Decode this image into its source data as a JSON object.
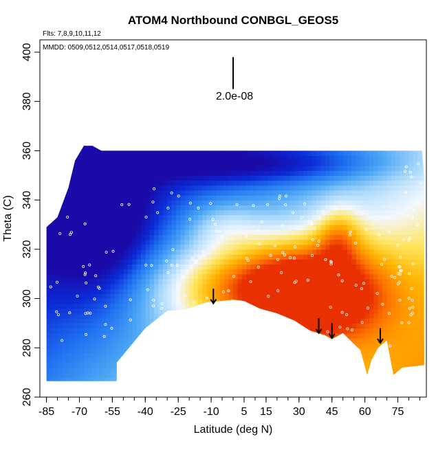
{
  "chart_data": {
    "type": "heatmap",
    "title": "ATOM4 Northbound CONBGL_GEOS5",
    "flights_note": "Flts: 7,8,9,10,11,12",
    "dates_note": "MMDD: 0509,0512,0514,0517,0518,0519",
    "scale_label": "2.0e-08",
    "xlabel": "Latitude (deg N)",
    "ylabel": "Theta (C)",
    "xlim": [
      -88,
      88
    ],
    "ylim": [
      260,
      405
    ],
    "x_ticks": [
      -85,
      -70,
      -55,
      -40,
      -25,
      -10,
      5,
      15,
      30,
      45,
      60,
      75
    ],
    "x_tick_labels": [
      "-85",
      "-70",
      "-55",
      "-40",
      "-25",
      "-10",
      "5",
      "15",
      "30",
      "45",
      "60",
      "75"
    ],
    "y_ticks": [
      260,
      280,
      300,
      320,
      340,
      360,
      380,
      400
    ],
    "y_tick_labels": [
      "260",
      "280",
      "300",
      "320",
      "340",
      "360",
      "380",
      "400"
    ],
    "minor_x_step": 5,
    "scale_bar": {
      "x": 0,
      "y_top": 398,
      "y_bottom": 385
    },
    "colormap": [
      "#1a0aa8",
      "#0a2ad6",
      "#1f6ff0",
      "#4aa5f5",
      "#a8d8fb",
      "#f2f8ff",
      "#ffe45a",
      "#ffb400",
      "#ff7a00",
      "#e83000"
    ],
    "vmin": 0,
    "vmax": 1,
    "surface_boundary": [
      [
        -85,
        266.5
      ],
      [
        -53,
        266.5
      ],
      [
        -53,
        274
      ],
      [
        -40,
        288
      ],
      [
        -30,
        295
      ],
      [
        -22,
        295.5
      ],
      [
        -12,
        298.5
      ],
      [
        -5,
        299
      ],
      [
        0,
        299.5
      ],
      [
        5,
        299
      ],
      [
        12,
        296
      ],
      [
        20,
        294
      ],
      [
        28,
        291
      ],
      [
        35,
        287
      ],
      [
        42,
        285
      ],
      [
        45,
        283.5
      ],
      [
        50,
        286
      ],
      [
        58,
        279
      ],
      [
        61,
        269
      ],
      [
        63,
        275
      ],
      [
        66,
        280
      ],
      [
        70,
        283
      ],
      [
        73,
        269
      ],
      [
        77,
        272
      ],
      [
        87,
        273
      ]
    ],
    "top_boundary": [
      [
        -85,
        329
      ],
      [
        -80,
        333
      ],
      [
        -75,
        345
      ],
      [
        -72,
        356
      ],
      [
        -68,
        362
      ],
      [
        -64,
        362
      ],
      [
        -60,
        360
      ],
      [
        8,
        360
      ],
      [
        86,
        360
      ],
      [
        87,
        350
      ],
      [
        87,
        273
      ]
    ],
    "arrows": [
      {
        "x": -9,
        "y_top": 304,
        "y_bottom": 298
      },
      {
        "x": 39,
        "y_top": 292,
        "y_bottom": 286
      },
      {
        "x": 45,
        "y_top": 290,
        "y_bottom": 284
      },
      {
        "x": 67,
        "y_top": 288,
        "y_bottom": 282
      }
    ],
    "aircraft_points_note": "white open circles mark aircraft sample locations",
    "grid": false,
    "legend": "none"
  }
}
